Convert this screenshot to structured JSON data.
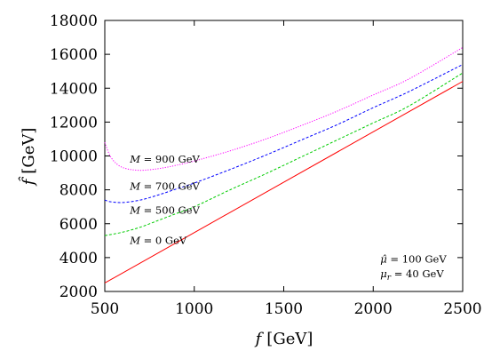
{
  "chart_data": {
    "type": "line",
    "xlabel": {
      "sym": "f",
      "unit": "[GeV]"
    },
    "ylabel": {
      "sym": "f̂",
      "unit": "[GeV]"
    },
    "xlim": [
      500,
      2500
    ],
    "ylim": [
      2000,
      18000
    ],
    "xticks": [
      500,
      1000,
      1500,
      2000,
      2500
    ],
    "yticks": [
      2000,
      4000,
      6000,
      8000,
      10000,
      12000,
      14000,
      16000,
      18000
    ],
    "grid": false,
    "series": [
      {
        "name": "M = 0 GeV",
        "color": "#ff0000",
        "dash": "solid",
        "label": {
          "sym": "M",
          "rest": " = 0 GeV",
          "x": 640,
          "y": 4800
        },
        "points": [
          [
            500,
            2500
          ],
          [
            2500,
            14400
          ]
        ]
      },
      {
        "name": "M = 500 GeV",
        "color": "#00cc00",
        "dash": "dashed",
        "label": {
          "sym": "M",
          "rest": " = 500 GeV",
          "x": 640,
          "y": 6600
        },
        "points": [
          [
            500,
            5300
          ],
          [
            600,
            5500
          ],
          [
            700,
            5800
          ],
          [
            800,
            6200
          ],
          [
            900,
            6600
          ],
          [
            1000,
            7000
          ],
          [
            1200,
            8000
          ],
          [
            1400,
            8950
          ],
          [
            1600,
            9950
          ],
          [
            1800,
            10950
          ],
          [
            2000,
            11950
          ],
          [
            2200,
            12950
          ],
          [
            2500,
            14900
          ]
        ]
      },
      {
        "name": "M = 700 GeV",
        "color": "#0000ff",
        "dash": "dashed",
        "label": {
          "sym": "M",
          "rest": " = 700 GeV",
          "x": 640,
          "y": 8000
        },
        "points": [
          [
            500,
            7400
          ],
          [
            530,
            7300
          ],
          [
            600,
            7250
          ],
          [
            700,
            7400
          ],
          [
            800,
            7700
          ],
          [
            900,
            8050
          ],
          [
            1000,
            8400
          ],
          [
            1200,
            9200
          ],
          [
            1400,
            10050
          ],
          [
            1600,
            10950
          ],
          [
            1800,
            11850
          ],
          [
            2000,
            12850
          ],
          [
            2200,
            13800
          ],
          [
            2500,
            15400
          ]
        ]
      },
      {
        "name": "M = 900 GeV",
        "color": "#ff00ff",
        "dash": "dotted",
        "label": {
          "sym": "M",
          "rest": " = 900 GeV",
          "x": 640,
          "y": 9600
        },
        "points": [
          [
            500,
            10800
          ],
          [
            530,
            10000
          ],
          [
            570,
            9500
          ],
          [
            620,
            9250
          ],
          [
            700,
            9150
          ],
          [
            800,
            9250
          ],
          [
            900,
            9450
          ],
          [
            1000,
            9700
          ],
          [
            1200,
            10300
          ],
          [
            1400,
            11000
          ],
          [
            1600,
            11800
          ],
          [
            1800,
            12650
          ],
          [
            2000,
            13600
          ],
          [
            2200,
            14550
          ],
          [
            2500,
            16400
          ]
        ]
      }
    ],
    "annotations": [
      {
        "sym": "μ̂",
        "sub": "",
        "rest": " = 100 GeV",
        "x": 2040,
        "y": 3700
      },
      {
        "sym": "μ",
        "sub": "r",
        "rest": " = 40 GeV",
        "x": 2040,
        "y": 2850
      }
    ]
  }
}
